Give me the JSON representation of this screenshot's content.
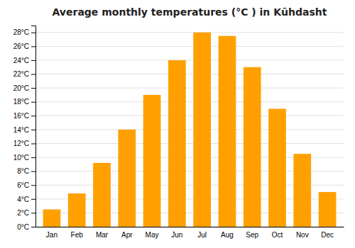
{
  "chart_data": {
    "type": "bar",
    "title": "Average monthly temperatures (°C ) in Kūhdasht",
    "categories": [
      "Jan",
      "Feb",
      "Mar",
      "Apr",
      "May",
      "Jun",
      "Jul",
      "Aug",
      "Sep",
      "Oct",
      "Nov",
      "Dec"
    ],
    "values": [
      2.5,
      4.8,
      9.2,
      14.0,
      19.0,
      24.0,
      28.0,
      27.5,
      23.0,
      17.0,
      10.5,
      5.0
    ],
    "color": "#FFA000",
    "ylim": [
      0,
      29
    ],
    "yticks": [
      {
        "value": 0,
        "label": "0°C"
      },
      {
        "value": 2,
        "label": "2°C"
      },
      {
        "value": 4,
        "label": "4°C"
      },
      {
        "value": 6,
        "label": "6°C"
      },
      {
        "value": 8,
        "label": "8°C"
      },
      {
        "value": 10,
        "label": "10°C"
      },
      {
        "value": 12,
        "label": "12°C"
      },
      {
        "value": 14,
        "label": "14°C"
      },
      {
        "value": 16,
        "label": "16°C"
      },
      {
        "value": 18,
        "label": "18°C"
      },
      {
        "value": 20,
        "label": "20°C"
      },
      {
        "value": 22,
        "label": "22°C"
      },
      {
        "value": 24,
        "label": "24°C"
      },
      {
        "value": 26,
        "label": "26°C"
      },
      {
        "value": 28,
        "label": "28°C"
      }
    ],
    "grid": true
  }
}
